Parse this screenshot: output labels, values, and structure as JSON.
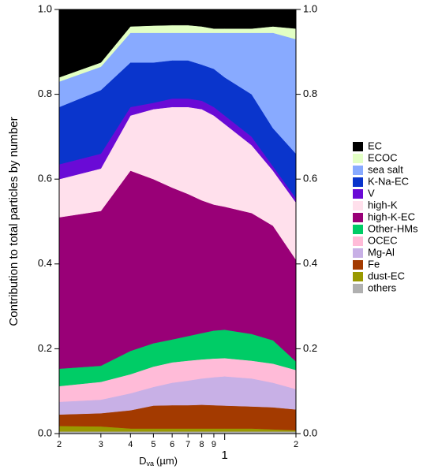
{
  "chart_data": {
    "type": "stacked_area",
    "y_label": "Contribution to total particles by number",
    "x_label": {
      "main": "D",
      "sub": "va",
      "unit": "(µm)"
    },
    "x_log": true,
    "xlim": [
      0.2,
      2
    ],
    "xticks": [
      {
        "value": 0.2,
        "label": "2"
      },
      {
        "value": 0.3,
        "label": "3"
      },
      {
        "value": 0.4,
        "label": "4"
      },
      {
        "value": 0.5,
        "label": "5"
      },
      {
        "value": 0.6,
        "label": "6"
      },
      {
        "value": 0.7,
        "label": "7"
      },
      {
        "value": 0.8,
        "label": "8"
      },
      {
        "value": 0.9,
        "label": "9"
      },
      {
        "value": 1,
        "label": "1"
      },
      {
        "value": 2,
        "label": "2"
      }
    ],
    "ylim": [
      0,
      1
    ],
    "yticks": [
      {
        "value": 0,
        "label": "0.0"
      },
      0.2,
      0.4,
      0.6,
      0.8,
      {
        "value": 1,
        "label": "1.0"
      }
    ],
    "right_axis_mirror": true,
    "legend_position": "right",
    "x": [
      0.2,
      0.3,
      0.4,
      0.5,
      0.6,
      0.7,
      0.8,
      0.9,
      1.0,
      1.3,
      1.6,
      2.0
    ],
    "series": [
      {
        "name": "EC",
        "color": "#000000",
        "values": [
          0.16,
          0.125,
          0.04,
          0.038,
          0.037,
          0.037,
          0.04,
          0.045,
          0.045,
          0.045,
          0.04,
          0.045
        ]
      },
      {
        "name": "ECOC",
        "color": "#e2ffc4",
        "values": [
          0.01,
          0.01,
          0.015,
          0.017,
          0.018,
          0.018,
          0.015,
          0.01,
          0.01,
          0.01,
          0.015,
          0.025
        ]
      },
      {
        "name": "sea salt",
        "color": "#88aaff",
        "values": [
          0.06,
          0.055,
          0.07,
          0.07,
          0.065,
          0.065,
          0.075,
          0.085,
          0.105,
          0.145,
          0.225,
          0.27
        ]
      },
      {
        "name": "K-Na-EC",
        "color": "#0a35cc",
        "values": [
          0.135,
          0.15,
          0.105,
          0.095,
          0.09,
          0.09,
          0.085,
          0.09,
          0.09,
          0.1,
          0.09,
          0.105
        ]
      },
      {
        "name": "V",
        "color": "#6a0ad6",
        "values": [
          0.035,
          0.035,
          0.02,
          0.015,
          0.02,
          0.02,
          0.02,
          0.02,
          0.02,
          0.02,
          0.01,
          0.01
        ]
      },
      {
        "name": "high-K",
        "color": "#ffe0ec",
        "values": [
          0.09,
          0.1,
          0.13,
          0.165,
          0.19,
          0.205,
          0.215,
          0.21,
          0.195,
          0.16,
          0.13,
          0.135
        ]
      },
      {
        "name": "high-K-EC",
        "color": "#990077",
        "values": [
          0.357,
          0.365,
          0.425,
          0.387,
          0.358,
          0.335,
          0.313,
          0.297,
          0.29,
          0.285,
          0.27,
          0.24
        ]
      },
      {
        "name": "Other-HMs",
        "color": "#00cc66",
        "values": [
          0.041,
          0.038,
          0.055,
          0.055,
          0.054,
          0.058,
          0.062,
          0.066,
          0.067,
          0.063,
          0.055,
          0.02
        ]
      },
      {
        "name": "OCEC",
        "color": "#ffbbd8",
        "values": [
          0.037,
          0.042,
          0.045,
          0.048,
          0.048,
          0.047,
          0.045,
          0.044,
          0.043,
          0.042,
          0.045,
          0.045
        ]
      },
      {
        "name": "Mg-Al",
        "color": "#c8b0e6",
        "values": [
          0.03,
          0.032,
          0.04,
          0.044,
          0.053,
          0.058,
          0.062,
          0.066,
          0.069,
          0.066,
          0.058,
          0.048
        ]
      },
      {
        "name": "Fe",
        "color": "#a33a00",
        "values": [
          0.027,
          0.031,
          0.043,
          0.054,
          0.055,
          0.055,
          0.056,
          0.055,
          0.054,
          0.052,
          0.052,
          0.049
        ]
      },
      {
        "name": "dust-EC",
        "color": "#999900",
        "values": [
          0.013,
          0.012,
          0.007,
          0.007,
          0.007,
          0.007,
          0.007,
          0.007,
          0.007,
          0.007,
          0.005,
          0.003
        ]
      },
      {
        "name": "others",
        "color": "#b0b0b0",
        "values": [
          0.005,
          0.005,
          0.005,
          0.005,
          0.005,
          0.005,
          0.005,
          0.005,
          0.005,
          0.005,
          0.005,
          0.005
        ]
      }
    ]
  }
}
